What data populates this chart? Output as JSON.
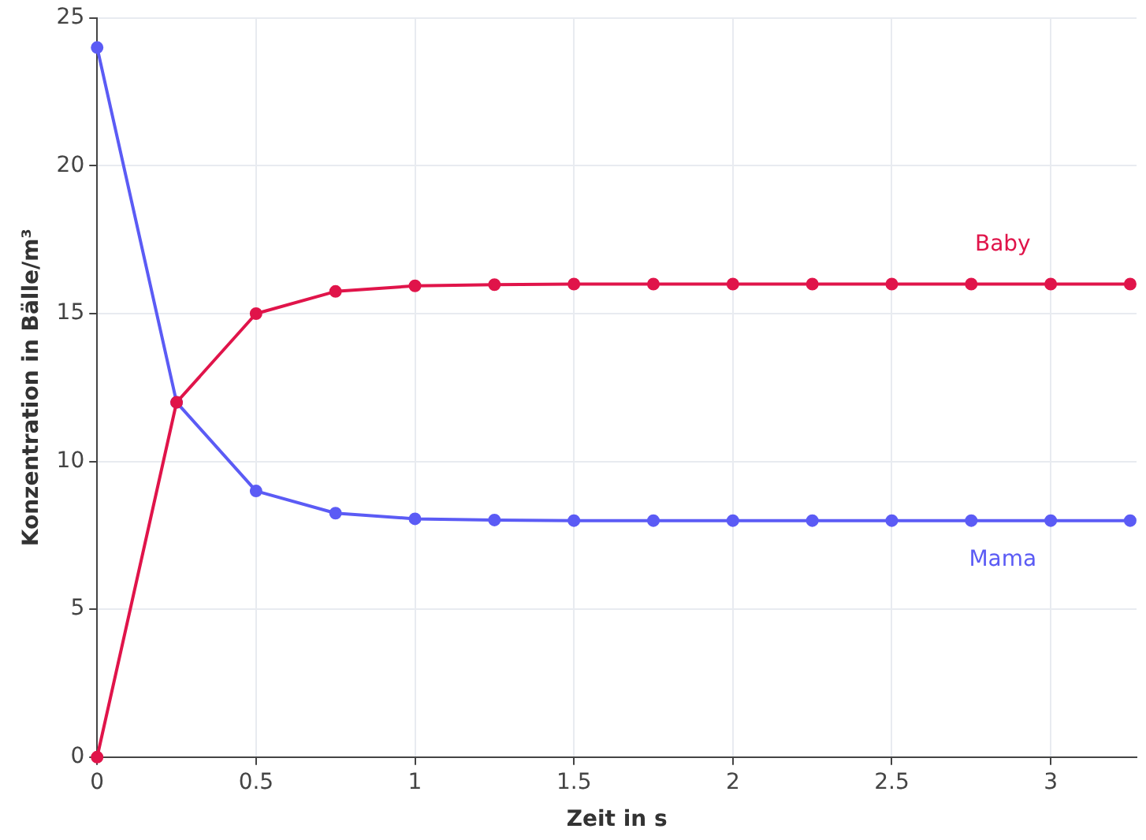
{
  "chart_data": {
    "type": "line",
    "xlabel": "Zeit in s",
    "ylabel": "Konzentration in Bälle/m³",
    "x": [
      0,
      0.25,
      0.5,
      0.75,
      1,
      1.25,
      1.5,
      1.75,
      2,
      2.25,
      2.5,
      2.75,
      3,
      3.25
    ],
    "series": [
      {
        "name": "Baby",
        "color": "#e0144a",
        "values": [
          0,
          12,
          15,
          15.75,
          15.94,
          15.98,
          16,
          16,
          16,
          16,
          16,
          16,
          16,
          16
        ]
      },
      {
        "name": "Mama",
        "color": "#5b5bf5",
        "values": [
          24,
          12,
          9,
          8.25,
          8.06,
          8.02,
          8,
          8,
          8,
          8,
          8,
          8,
          8,
          8
        ]
      }
    ],
    "xlim": [
      0,
      3.27
    ],
    "xticks": [
      0,
      0.5,
      1,
      1.5,
      2,
      2.5,
      3
    ],
    "ylim": [
      0,
      25
    ],
    "yticks": [
      0,
      5,
      10,
      15,
      20,
      25
    ],
    "grid": true,
    "legend": false,
    "marker": "circle",
    "line_style": "solid"
  }
}
